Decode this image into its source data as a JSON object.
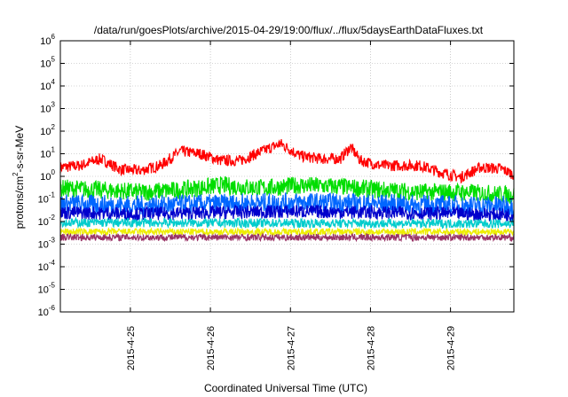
{
  "chart_data": {
    "type": "line",
    "title": "/data/run/goesPlots/archive/2015-04-29/19:00/flux/../flux/5daysEarthDataFluxes.txt",
    "xlabel": "Coordinated Universal Time (UTC)",
    "ylabel_base": "protons/cm",
    "ylabel_sup": "2",
    "ylabel_rest": "-s-sr-MeV",
    "yscale": "log",
    "ylim": [
      1e-06,
      1000000.0
    ],
    "xlim": [
      "2015-04-24T03:00",
      "2015-04-29T19:00"
    ],
    "x_ticks": [
      {
        "value": "2015-04-25T00:00",
        "label": "2015-4-25"
      },
      {
        "value": "2015-04-26T00:00",
        "label": "2015-4-26"
      },
      {
        "value": "2015-04-27T00:00",
        "label": "2015-4-27"
      },
      {
        "value": "2015-04-28T00:00",
        "label": "2015-4-28"
      },
      {
        "value": "2015-04-29T00:00",
        "label": "2015-4-29"
      }
    ],
    "y_ticks": [
      {
        "value": 1000000.0,
        "exp": "6"
      },
      {
        "value": 100000.0,
        "exp": "5"
      },
      {
        "value": 10000.0,
        "exp": "4"
      },
      {
        "value": 1000.0,
        "exp": "3"
      },
      {
        "value": 100.0,
        "exp": "2"
      },
      {
        "value": 10.0,
        "exp": "1"
      },
      {
        "value": 1.0,
        "exp": "0"
      },
      {
        "value": 0.1,
        "exp": "-1"
      },
      {
        "value": 0.01,
        "exp": "-2"
      },
      {
        "value": 0.001,
        "exp": "-3"
      },
      {
        "value": 0.0001,
        "exp": "-4"
      },
      {
        "value": 1e-05,
        "exp": "-5"
      },
      {
        "value": 1e-06,
        "exp": "-6"
      }
    ],
    "tick_base": "10",
    "grid": true,
    "legend": "none",
    "series": [
      {
        "color": "#ff0000",
        "x": [
          "2015-04-24T03:00",
          "2015-04-24T09:00",
          "2015-04-24T15:00",
          "2015-04-24T21:00",
          "2015-04-25T03:00",
          "2015-04-25T09:00",
          "2015-04-25T15:00",
          "2015-04-25T21:00",
          "2015-04-26T03:00",
          "2015-04-26T09:00",
          "2015-04-26T15:00",
          "2015-04-26T21:00",
          "2015-04-27T03:00",
          "2015-04-27T09:00",
          "2015-04-27T15:00",
          "2015-04-27T18:00",
          "2015-04-27T21:00",
          "2015-04-28T03:00",
          "2015-04-28T09:00",
          "2015-04-28T15:00",
          "2015-04-28T21:00",
          "2015-04-29T03:00",
          "2015-04-29T09:00",
          "2015-04-29T15:00",
          "2015-04-29T19:00"
        ],
        "y": [
          2.5,
          3,
          6,
          2,
          1.8,
          3,
          13,
          10,
          5,
          5,
          12,
          28,
          8,
          6,
          6,
          20,
          5,
          3,
          3,
          3,
          1.5,
          0.9,
          2.5,
          2.2,
          1.2
        ],
        "noise": 0.25
      },
      {
        "color": "#00dd00",
        "x": [
          "2015-04-24T03:00",
          "2015-04-24T15:00",
          "2015-04-25T03:00",
          "2015-04-25T15:00",
          "2015-04-26T03:00",
          "2015-04-26T15:00",
          "2015-04-27T03:00",
          "2015-04-27T15:00",
          "2015-04-28T03:00",
          "2015-04-28T15:00",
          "2015-04-29T03:00",
          "2015-04-29T19:00"
        ],
        "y": [
          0.3,
          0.25,
          0.2,
          0.25,
          0.4,
          0.3,
          0.4,
          0.35,
          0.25,
          0.2,
          0.2,
          0.15
        ],
        "noise": 0.4
      },
      {
        "color": "#0066ff",
        "x": [
          "2015-04-24T03:00",
          "2015-04-25T03:00",
          "2015-04-26T03:00",
          "2015-04-27T03:00",
          "2015-04-28T03:00",
          "2015-04-29T03:00",
          "2015-04-29T19:00"
        ],
        "y": [
          0.06,
          0.05,
          0.06,
          0.07,
          0.06,
          0.05,
          0.05
        ],
        "noise": 0.45
      },
      {
        "color": "#0000cc",
        "x": [
          "2015-04-24T03:00",
          "2015-04-25T03:00",
          "2015-04-26T03:00",
          "2015-04-27T03:00",
          "2015-04-28T03:00",
          "2015-04-29T03:00",
          "2015-04-29T19:00"
        ],
        "y": [
          0.025,
          0.022,
          0.025,
          0.028,
          0.025,
          0.022,
          0.02
        ],
        "noise": 0.3
      },
      {
        "color": "#00cccc",
        "x": [
          "2015-04-24T03:00",
          "2015-04-29T19:00"
        ],
        "y": [
          0.009,
          0.008
        ],
        "noise": 0.2
      },
      {
        "color": "#eeee00",
        "x": [
          "2015-04-24T03:00",
          "2015-04-29T19:00"
        ],
        "y": [
          0.0035,
          0.0035
        ],
        "noise": 0.15
      },
      {
        "color": "#993366",
        "x": [
          "2015-04-24T03:00",
          "2015-04-29T19:00"
        ],
        "y": [
          0.002,
          0.002
        ],
        "noise": 0.15
      }
    ]
  }
}
